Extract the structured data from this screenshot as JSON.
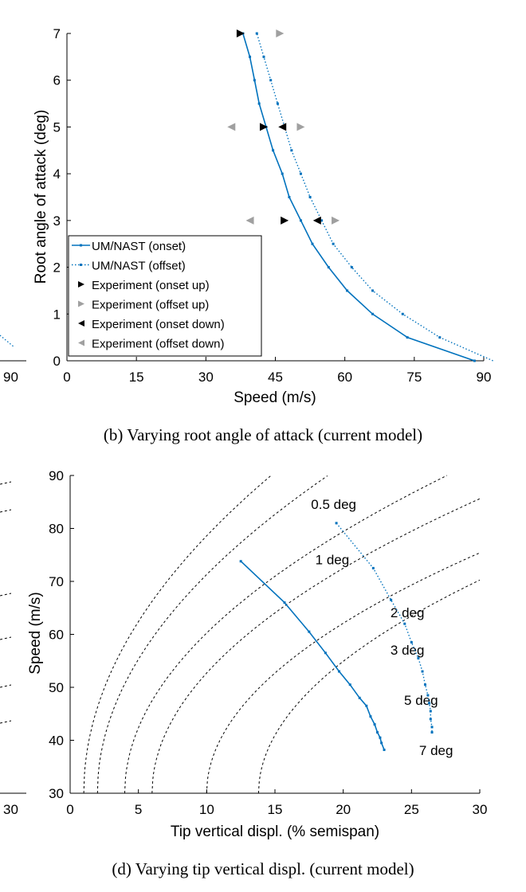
{
  "colors": {
    "model": "#0072BD",
    "exp_dark": "#000000",
    "exp_light": "#A0A0A0",
    "iso": "#000000"
  },
  "left_fragments": {
    "top_tick": "90",
    "bottom_tick": "30"
  },
  "chart_data": [
    {
      "type": "line",
      "panel": "b",
      "caption": "(b)  Varying root angle of attack (current model)",
      "xlabel": "Speed (m/s)",
      "ylabel": "Root angle of attack (deg)",
      "xlim": [
        0,
        90
      ],
      "ylim": [
        0,
        7
      ],
      "xticks": [
        "0",
        "15",
        "30",
        "45",
        "60",
        "75",
        "90"
      ],
      "yticks": [
        "0",
        "1",
        "2",
        "3",
        "4",
        "5",
        "6",
        "7"
      ],
      "legend_position": "bottom-left",
      "series": [
        {
          "name": "UM/NAST (onset)",
          "style": "solid",
          "points": [
            [
              88.0,
              0.0
            ],
            [
              73.5,
              0.5
            ],
            [
              66.0,
              1.0
            ],
            [
              60.5,
              1.5
            ],
            [
              56.5,
              2.0
            ],
            [
              53.0,
              2.5
            ],
            [
              50.5,
              3.0
            ],
            [
              48.0,
              3.5
            ],
            [
              46.5,
              4.0
            ],
            [
              44.5,
              4.5
            ],
            [
              43.0,
              5.0
            ],
            [
              41.5,
              5.5
            ],
            [
              40.5,
              6.0
            ],
            [
              39.5,
              6.5
            ],
            [
              38.0,
              7.0
            ]
          ]
        },
        {
          "name": "UM/NAST (offset)",
          "style": "dotted",
          "points": [
            [
              92.0,
              0.0
            ],
            [
              80.5,
              0.5
            ],
            [
              72.5,
              1.0
            ],
            [
              66.0,
              1.5
            ],
            [
              61.5,
              2.0
            ],
            [
              57.5,
              2.5
            ],
            [
              55.0,
              3.0
            ],
            [
              52.5,
              3.5
            ],
            [
              50.5,
              4.0
            ],
            [
              48.5,
              4.5
            ],
            [
              47.0,
              5.0
            ],
            [
              45.5,
              5.5
            ],
            [
              44.0,
              6.0
            ],
            [
              42.5,
              6.5
            ],
            [
              41.0,
              7.0
            ]
          ]
        },
        {
          "name": "Experiment (onset up)",
          "marker": "triangle-right",
          "color": "dark",
          "points": [
            [
              37.5,
              7.0
            ],
            [
              42.5,
              5.0
            ],
            [
              47.0,
              3.0
            ]
          ]
        },
        {
          "name": "Experiment (offset up)",
          "marker": "triangle-right",
          "color": "light",
          "points": [
            [
              46.0,
              7.0
            ],
            [
              50.5,
              5.0
            ],
            [
              58.0,
              3.0
            ]
          ]
        },
        {
          "name": "Experiment (onset down)",
          "marker": "triangle-left",
          "color": "dark",
          "points": [
            [
              46.5,
              5.0
            ],
            [
              54.0,
              3.0
            ]
          ]
        },
        {
          "name": "Experiment (offset down)",
          "marker": "triangle-left",
          "color": "light",
          "points": [
            [
              35.5,
              5.0
            ],
            [
              39.5,
              3.0
            ]
          ]
        }
      ]
    },
    {
      "type": "line",
      "panel": "d",
      "caption": "(d)  Varying tip vertical displ. (current model)",
      "xlabel": "Tip vertical displ. (% semispan)",
      "ylabel": "Speed (m/s)",
      "xlim": [
        0,
        30
      ],
      "ylim": [
        30,
        90
      ],
      "xticks": [
        "0",
        "5",
        "10",
        "15",
        "20",
        "25",
        "30"
      ],
      "yticks": [
        "30",
        "40",
        "50",
        "60",
        "70",
        "80",
        "90"
      ],
      "iso_lines": [
        {
          "label": "0.5 deg",
          "k": 0.0,
          "x0": 1.0,
          "label_at": [
            19.3,
            84.0
          ]
        },
        {
          "label": "1 deg",
          "k": 0.0,
          "x0": 2.0,
          "label_at": [
            19.2,
            73.5
          ]
        },
        {
          "label": "2 deg",
          "k": 0.0,
          "x0": 4.0,
          "label_at": [
            24.7,
            63.5
          ]
        },
        {
          "label": "3 deg",
          "k": 0.0,
          "x0": 6.0,
          "label_at": [
            24.7,
            56.5
          ]
        },
        {
          "label": "5 deg",
          "k": 0.0,
          "x0": 10.0,
          "label_at": [
            25.7,
            47.0
          ]
        },
        {
          "label": "7 deg",
          "k": 0.0,
          "x0": 13.8,
          "label_at": [
            26.8,
            37.5
          ]
        }
      ],
      "series": [
        {
          "name": "onset",
          "style": "solid",
          "points": [
            [
              12.5,
              73.8
            ],
            [
              15.7,
              66.0
            ],
            [
              17.5,
              60.5
            ],
            [
              18.7,
              56.5
            ],
            [
              19.7,
              53.0
            ],
            [
              20.5,
              50.5
            ],
            [
              21.2,
              48.0
            ],
            [
              21.7,
              46.5
            ],
            [
              22.0,
              44.5
            ],
            [
              22.3,
              43.0
            ],
            [
              22.5,
              41.5
            ],
            [
              22.7,
              40.5
            ],
            [
              22.8,
              39.5
            ],
            [
              23.0,
              38.2
            ]
          ]
        },
        {
          "name": "offset",
          "style": "dotted",
          "points": [
            [
              19.5,
              81.0
            ],
            [
              22.2,
              72.5
            ],
            [
              23.5,
              66.5
            ],
            [
              24.5,
              62.0
            ],
            [
              25.0,
              58.5
            ],
            [
              25.5,
              55.5
            ],
            [
              25.8,
              53.0
            ],
            [
              26.0,
              50.5
            ],
            [
              26.2,
              48.5
            ],
            [
              26.3,
              47.0
            ],
            [
              26.4,
              45.5
            ],
            [
              26.4,
              44.0
            ],
            [
              26.5,
              42.5
            ],
            [
              26.5,
              41.5
            ]
          ]
        }
      ]
    }
  ]
}
